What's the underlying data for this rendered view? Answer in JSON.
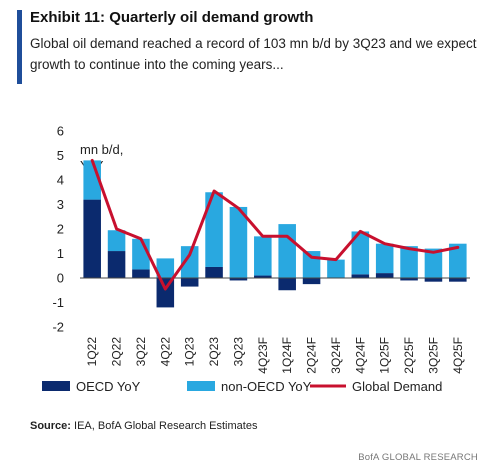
{
  "header": {
    "title": "Exhibit 11: Quarterly oil demand growth",
    "subtitle": "Global oil demand reached a record of 103 mn b/d by 3Q23 and we expect growth to continue into the coming years..."
  },
  "footer": {
    "source_label": "Source:",
    "source_text": " IEA, BofA Global Research Estimates",
    "brand": "BofA GLOBAL RESEARCH"
  },
  "chart_data": {
    "type": "bar",
    "subtype": "stacked bar with line overlay",
    "unit_label": [
      "mn b/d,",
      "YoY"
    ],
    "categories": [
      "1Q22",
      "2Q22",
      "3Q22",
      "4Q22",
      "1Q23",
      "2Q23",
      "3Q23",
      "4Q23F",
      "1Q24F",
      "2Q24F",
      "3Q24F",
      "4Q24F",
      "1Q25F",
      "2Q25F",
      "3Q25F",
      "4Q25F"
    ],
    "ylim": [
      -2,
      6
    ],
    "yticks": [
      -2,
      -1,
      0,
      1,
      2,
      3,
      4,
      5,
      6
    ],
    "grid": false,
    "legend_position": "bottom",
    "series": [
      {
        "name": "OECD YoY",
        "kind": "bar",
        "color": "#0b2a6e",
        "values": [
          3.2,
          1.1,
          0.35,
          -1.2,
          -0.35,
          0.45,
          -0.1,
          0.1,
          -0.5,
          -0.25,
          0.0,
          0.15,
          0.2,
          -0.1,
          -0.15,
          -0.15
        ]
      },
      {
        "name": "non-OECD YoY",
        "kind": "bar",
        "color": "#29a8e0",
        "values": [
          1.6,
          0.85,
          1.25,
          0.8,
          1.3,
          3.05,
          2.9,
          1.6,
          2.2,
          1.1,
          0.75,
          1.75,
          1.2,
          1.3,
          1.2,
          1.4
        ]
      },
      {
        "name": "Global Demand",
        "kind": "line",
        "color": "#c8102e",
        "values": [
          4.8,
          2.0,
          1.6,
          -0.45,
          0.95,
          3.55,
          2.85,
          1.7,
          1.7,
          0.85,
          0.75,
          1.9,
          1.4,
          1.2,
          1.05,
          1.25
        ]
      }
    ]
  }
}
